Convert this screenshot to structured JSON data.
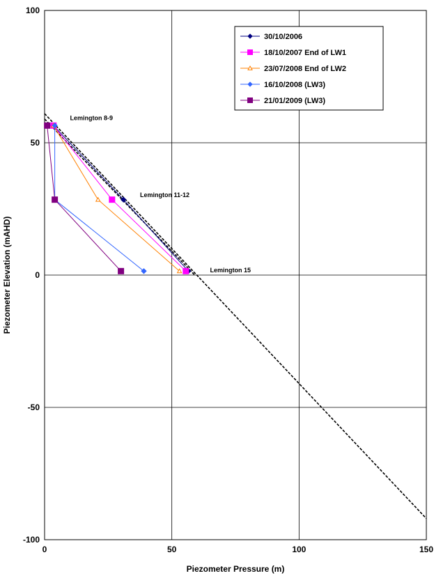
{
  "chart_data": {
    "type": "scatter",
    "title": "",
    "xlabel": "Piezometer Pressure (m)",
    "ylabel": "Piezometer Elevation (mAHD)",
    "xlim": [
      0,
      150
    ],
    "ylim": [
      -100,
      100
    ],
    "xticks": [
      0,
      50,
      100,
      150
    ],
    "yticks": [
      -100,
      -50,
      0,
      50,
      100
    ],
    "grid": true,
    "legend_position": "top-right",
    "series": [
      {
        "name": "30/10/2006",
        "color": "#000080",
        "marker": "diamond",
        "x": [
          3.5,
          31,
          56.5
        ],
        "y": [
          56.5,
          28.5,
          1.5
        ]
      },
      {
        "name": "18/10/2007 End of LW1",
        "color": "#FF00FF",
        "marker": "square",
        "x": [
          3.5,
          26.5,
          55.5
        ],
        "y": [
          56.5,
          28.5,
          1.5
        ]
      },
      {
        "name": "23/07/2008 End of LW2",
        "color": "#FF8000",
        "marker": "triangle",
        "x": [
          3.5,
          21,
          53
        ],
        "y": [
          56.5,
          28.5,
          1.5
        ]
      },
      {
        "name": "16/10/2008 (LW3)",
        "color": "#3366FF",
        "marker": "diamond",
        "x": [
          4,
          4,
          39
        ],
        "y": [
          56.5,
          28.5,
          1.5
        ]
      },
      {
        "name": "21/01/2009 (LW3)",
        "color": "#800080",
        "marker": "square",
        "x": [
          1,
          4,
          30
        ],
        "y": [
          56.5,
          28.5,
          1.5
        ]
      }
    ],
    "reference_lines": [
      {
        "x": [
          0,
          150
        ],
        "y": [
          61,
          -92
        ],
        "style": "dashed",
        "color": "#000000"
      },
      {
        "x": [
          0,
          59
        ],
        "y": [
          59,
          0
        ],
        "style": "dashed",
        "color": "#000000"
      }
    ],
    "annotations": [
      {
        "text": "Lemington 8-9",
        "x": 10,
        "y": 58.5
      },
      {
        "text": "Lemington 11-12",
        "x": 37.5,
        "y": 29.5
      },
      {
        "text": "Lemington 15",
        "x": 65,
        "y": 1
      }
    ]
  }
}
